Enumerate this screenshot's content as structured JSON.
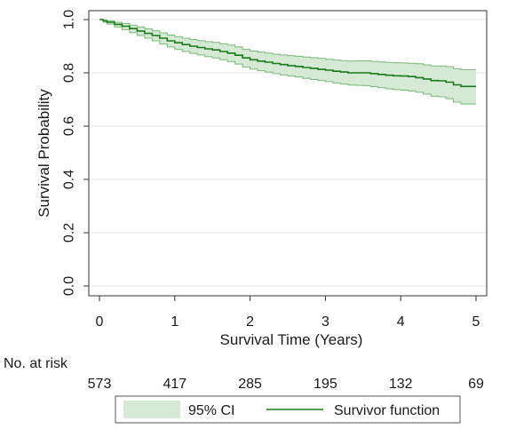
{
  "chart_data": {
    "type": "line",
    "xlabel": "Survival Time (Years)",
    "ylabel": "Survival Probability",
    "xlim": [
      0,
      5
    ],
    "ylim": [
      0,
      1
    ],
    "x_ticks": [
      "0",
      "1",
      "2",
      "3",
      "4",
      "5"
    ],
    "y_ticks": [
      "0.0",
      "0.2",
      "0.4",
      "0.6",
      "0.8",
      "1.0"
    ],
    "grid": "horizontal",
    "legend_position": "bottom",
    "series": [
      {
        "name": "Survivor function",
        "color": "#1a7a1a",
        "x": [
          0,
          0.05,
          0.1,
          0.2,
          0.3,
          0.4,
          0.5,
          0.6,
          0.7,
          0.8,
          0.9,
          1.0,
          1.1,
          1.2,
          1.3,
          1.4,
          1.5,
          1.6,
          1.7,
          1.8,
          1.9,
          2.0,
          2.1,
          2.2,
          2.3,
          2.4,
          2.5,
          2.6,
          2.7,
          2.8,
          2.9,
          3.0,
          3.1,
          3.2,
          3.3,
          3.4,
          3.5,
          3.6,
          3.7,
          3.8,
          3.9,
          4.0,
          4.1,
          4.2,
          4.3,
          4.4,
          4.5,
          4.6,
          4.7,
          4.8,
          4.9,
          5.0
        ],
        "values": [
          1.0,
          0.995,
          0.99,
          0.982,
          0.975,
          0.966,
          0.957,
          0.948,
          0.94,
          0.93,
          0.92,
          0.913,
          0.906,
          0.9,
          0.895,
          0.89,
          0.886,
          0.88,
          0.874,
          0.866,
          0.856,
          0.849,
          0.844,
          0.84,
          0.835,
          0.831,
          0.827,
          0.824,
          0.82,
          0.817,
          0.813,
          0.81,
          0.806,
          0.803,
          0.8,
          0.8,
          0.8,
          0.797,
          0.794,
          0.791,
          0.789,
          0.788,
          0.786,
          0.782,
          0.777,
          0.771,
          0.77,
          0.765,
          0.755,
          0.749,
          0.749,
          0.749
        ]
      }
    ],
    "ci": {
      "name": "95% CI",
      "color": "#d5e9d5",
      "edge_color": "#7ab87a",
      "lower": [
        1.0,
        0.99,
        0.983,
        0.972,
        0.962,
        0.951,
        0.94,
        0.93,
        0.92,
        0.908,
        0.897,
        0.888,
        0.88,
        0.873,
        0.867,
        0.861,
        0.856,
        0.849,
        0.842,
        0.833,
        0.822,
        0.814,
        0.808,
        0.803,
        0.797,
        0.792,
        0.788,
        0.784,
        0.779,
        0.775,
        0.771,
        0.767,
        0.762,
        0.758,
        0.754,
        0.753,
        0.752,
        0.748,
        0.744,
        0.74,
        0.737,
        0.735,
        0.732,
        0.727,
        0.72,
        0.712,
        0.71,
        0.703,
        0.69,
        0.683,
        0.683,
        0.683
      ],
      "upper": [
        1.0,
        0.998,
        0.995,
        0.99,
        0.985,
        0.979,
        0.972,
        0.965,
        0.958,
        0.95,
        0.942,
        0.936,
        0.93,
        0.925,
        0.921,
        0.917,
        0.914,
        0.909,
        0.904,
        0.897,
        0.888,
        0.882,
        0.878,
        0.874,
        0.87,
        0.867,
        0.864,
        0.862,
        0.859,
        0.857,
        0.854,
        0.851,
        0.848,
        0.846,
        0.844,
        0.845,
        0.845,
        0.843,
        0.841,
        0.839,
        0.838,
        0.837,
        0.836,
        0.834,
        0.83,
        0.826,
        0.826,
        0.823,
        0.816,
        0.812,
        0.812,
        0.812
      ]
    },
    "risk_table": {
      "label": "No. at risk",
      "times": [
        0,
        1,
        2,
        3,
        4,
        5
      ],
      "counts": [
        "573",
        "417",
        "285",
        "195",
        "132",
        "69"
      ]
    },
    "legend": {
      "ci_label": "95% CI",
      "line_label": "Survivor function"
    }
  }
}
